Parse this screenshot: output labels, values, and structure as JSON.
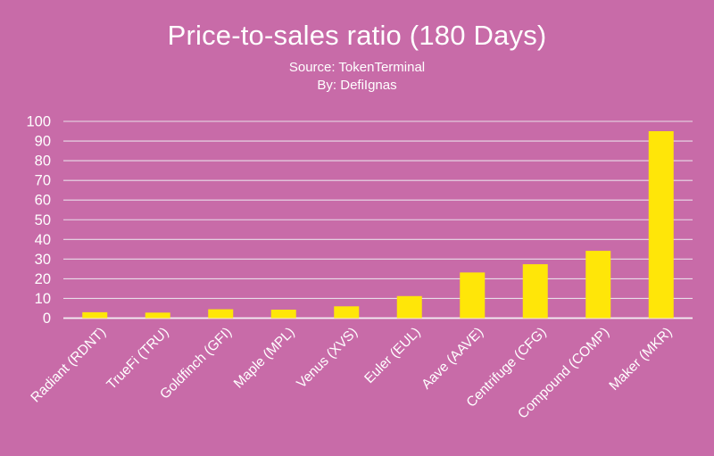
{
  "header": {
    "title": "Price-to-sales ratio (180 Days)",
    "source_line": "Source: TokenTerminal",
    "byline": "By: DefiIgnas"
  },
  "colors": {
    "background": "#c86ba8",
    "bar": "#ffe608",
    "gridline": "#e9dce9",
    "axis_line": "#f5f0f5",
    "text": "#ffffff"
  },
  "chart_data": {
    "type": "bar",
    "title": "Price-to-sales ratio (180 Days)",
    "subtitle": [
      "Source: TokenTerminal",
      "By: DefiIgnas"
    ],
    "categories": [
      "Radiant (RDNT)",
      "TrueFi (TRU)",
      "Goldfinch (GFI)",
      "Maple (MPL)",
      "Venus (XVS)",
      "Euler (EUL)",
      "Aave (AAVE)",
      "Centrifuge (CFG)",
      "Compound (COMP)",
      "Maker (MKR)"
    ],
    "values": [
      3,
      2.8,
      4.5,
      4.3,
      6,
      11.2,
      23.2,
      27.4,
      34.2,
      95
    ],
    "xlabel": "",
    "ylabel": "",
    "ylim": [
      0,
      100
    ],
    "yticks": [
      0,
      10,
      20,
      30,
      40,
      50,
      60,
      70,
      80,
      90,
      100
    ],
    "grid": true,
    "legend": false,
    "x_tick_rotation_deg": 45,
    "bar_color": "#ffe608",
    "background_color": "#c86ba8"
  }
}
